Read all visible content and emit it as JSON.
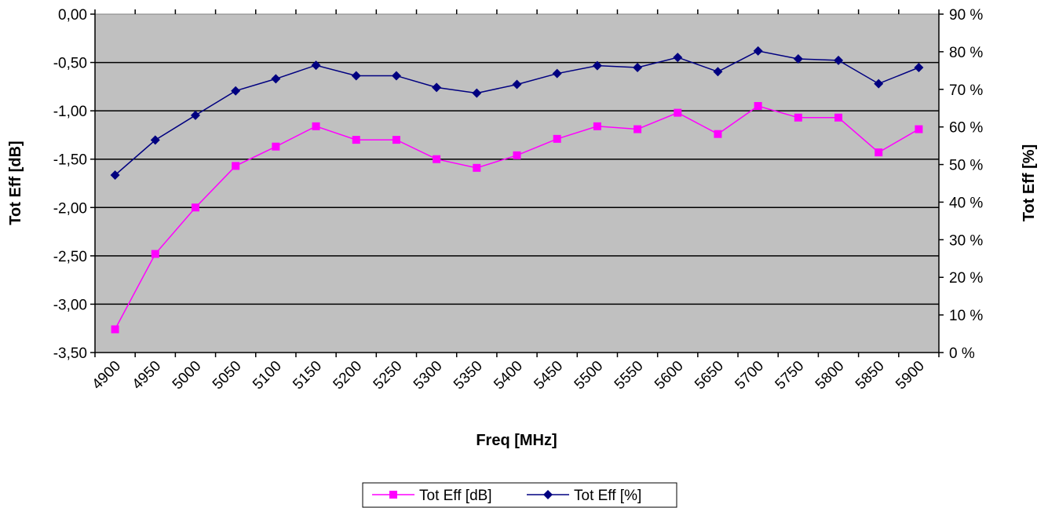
{
  "chart_data": {
    "type": "line",
    "xlabel": "Freq [MHz]",
    "ylabel_left": "Tot Eff [dB]",
    "ylabel_right": "Tot Eff [%]",
    "x": [
      4900,
      4950,
      5000,
      5050,
      5100,
      5150,
      5200,
      5250,
      5300,
      5350,
      5400,
      5450,
      5500,
      5550,
      5600,
      5650,
      5700,
      5750,
      5800,
      5850,
      5900
    ],
    "x_tick_labels": [
      "4900",
      "4950",
      "5000",
      "5050",
      "5100",
      "5150",
      "5200",
      "5250",
      "5300",
      "5350",
      "5400",
      "5450",
      "5500",
      "5550",
      "5600",
      "5650",
      "5700",
      "5750",
      "5800",
      "5850",
      "5900"
    ],
    "ylim_left": [
      -3.5,
      0
    ],
    "ylim_right": [
      0,
      90
    ],
    "y_left_ticks": [
      0,
      -0.5,
      -1,
      -1.5,
      -2,
      -2.5,
      -3,
      -3.5
    ],
    "y_left_tick_labels": [
      "0,00",
      "-0,50",
      "-1,00",
      "-1,50",
      "-2,00",
      "-2,50",
      "-3,00",
      "-3,50"
    ],
    "y_right_ticks": [
      90,
      80,
      70,
      60,
      50,
      40,
      30,
      20,
      10,
      0
    ],
    "y_right_tick_labels": [
      "90 %",
      "80 %",
      "70 %",
      "60 %",
      "50 %",
      "40 %",
      "30 %",
      "20 %",
      "10 %",
      "0 %"
    ],
    "grid": true,
    "plot_background": "#c0c0c0",
    "legend_position": "bottom",
    "series": [
      {
        "name": "Tot Eff [dB]",
        "axis": "left",
        "color": "#ff00ff",
        "marker": "square",
        "values": [
          -3.26,
          -2.48,
          -2.0,
          -1.57,
          -1.37,
          -1.16,
          -1.3,
          -1.3,
          -1.5,
          -1.59,
          -1.46,
          -1.29,
          -1.16,
          -1.19,
          -1.02,
          -1.24,
          -0.95,
          -1.07,
          -1.07,
          -1.43,
          -1.19
        ]
      },
      {
        "name": "Tot Eff [%]",
        "axis": "right",
        "color": "#000080",
        "marker": "diamond",
        "values": [
          47.2,
          56.5,
          63.1,
          69.6,
          72.8,
          76.4,
          73.6,
          73.6,
          70.5,
          69.0,
          71.3,
          74.2,
          76.3,
          75.8,
          78.5,
          74.7,
          80.2,
          78.1,
          77.7,
          71.5,
          75.8
        ]
      }
    ]
  }
}
